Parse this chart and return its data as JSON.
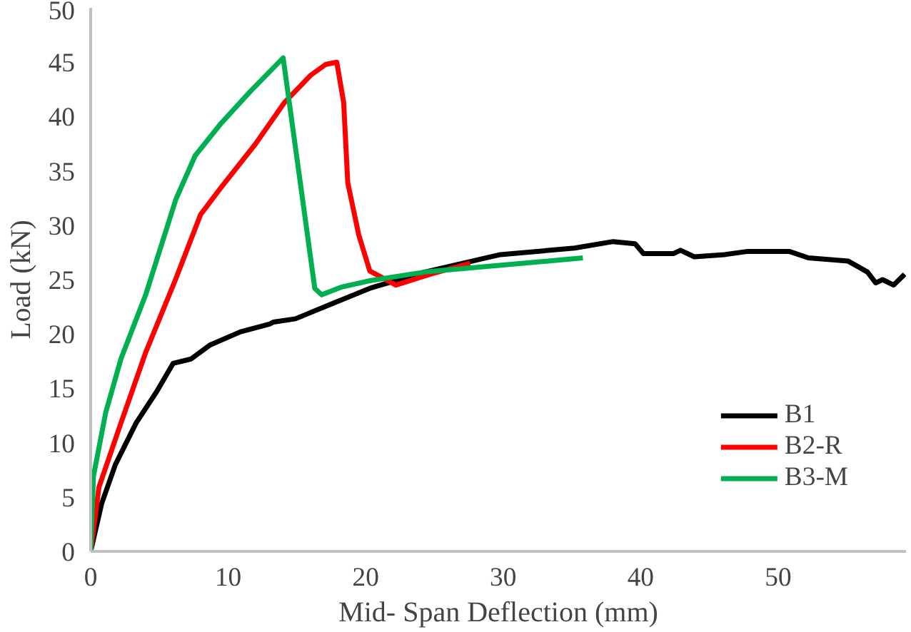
{
  "chart_data": {
    "type": "line",
    "xlabel": "Mid- Span Deflection (mm)",
    "ylabel": "Load (kN)",
    "xlim": [
      0,
      59.3
    ],
    "xticks": [
      0,
      10,
      20,
      30,
      40,
      50
    ],
    "ylim": [
      0,
      50
    ],
    "yticks": [
      0,
      5,
      10,
      15,
      20,
      25,
      30,
      35,
      40,
      45,
      50
    ],
    "grid": false,
    "legend": "bottom right",
    "marker": "none",
    "line_style": "solid",
    "series": [
      {
        "name": "B1",
        "color": "#000000",
        "x": [
          0,
          0.8,
          1.8,
          3.3,
          4.8,
          6,
          7.3,
          8.7,
          10.9,
          13,
          13.3,
          14.9,
          17.4,
          20.3,
          24.3,
          29.8,
          35.2,
          38,
          39.6,
          40.2,
          42.4,
          42.9,
          43.9,
          46.1,
          47.8,
          50.8,
          52.2,
          55.1,
          56.5,
          57.1,
          57.6,
          58.4,
          59.2
        ],
        "values": [
          0,
          4.4,
          8,
          11.8,
          14.7,
          17.3,
          17.7,
          19,
          20.2,
          20.9,
          21.1,
          21.4,
          22.7,
          24.2,
          25.7,
          27.3,
          27.9,
          28.5,
          28.3,
          27.4,
          27.4,
          27.7,
          27.1,
          27.3,
          27.6,
          27.6,
          27,
          26.7,
          25.7,
          24.7,
          25,
          24.5,
          25.5
        ]
      },
      {
        "name": "B2-R",
        "color": "#ff0000",
        "x": [
          0,
          0.6,
          2.2,
          4,
          6.2,
          8,
          9.5,
          12,
          14.1,
          16,
          17.1,
          17.9,
          18.4,
          18.7,
          19.5,
          20.3,
          22.2,
          24.7,
          27.6
        ],
        "values": [
          0,
          5.9,
          11.8,
          18.3,
          25.1,
          31,
          33.5,
          37.5,
          41.3,
          43.8,
          44.8,
          45,
          41.3,
          33.9,
          29.1,
          25.8,
          24.5,
          25.5,
          26.5
        ]
      },
      {
        "name": "B3-M",
        "color": "#00b050",
        "x": [
          0,
          0.2,
          1.1,
          2.2,
          4,
          6.2,
          7.6,
          9.5,
          11.6,
          14,
          16.3,
          16.8,
          18.2,
          20.3,
          24.3,
          35.8
        ],
        "values": [
          0,
          6.9,
          12.8,
          17.7,
          23.6,
          32.4,
          36.4,
          39.4,
          42.3,
          45.4,
          24.2,
          23.6,
          24.3,
          24.9,
          25.7,
          27
        ]
      }
    ]
  }
}
